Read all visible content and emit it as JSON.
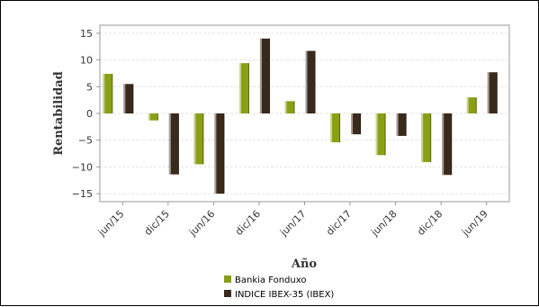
{
  "chart_data": {
    "type": "bar",
    "xlabel": "Año",
    "ylabel": "Rentabilidad",
    "ylim": [
      -16.5,
      16.5
    ],
    "yticks": [
      15,
      10,
      5,
      0,
      -5,
      -10,
      -15
    ],
    "categories": [
      "jun/15",
      "dic/15",
      "jun/16",
      "dic/16",
      "jun/17",
      "dic/17",
      "jun/18",
      "dic/18",
      "jun/19"
    ],
    "series": [
      {
        "name": "Bankia Fonduxo",
        "color": "#8a9f16",
        "values": [
          7.4,
          -1.3,
          -9.5,
          9.4,
          2.3,
          -5.4,
          -7.8,
          -9.1,
          3.0
        ]
      },
      {
        "name": "INDICE IBEX-35 (IBEX)",
        "color": "#3a2a1c",
        "values": [
          5.5,
          -11.4,
          -15.0,
          14.0,
          11.7,
          -3.9,
          -4.2,
          -11.5,
          7.7
        ]
      }
    ],
    "grid": true,
    "legend": "bottom"
  }
}
